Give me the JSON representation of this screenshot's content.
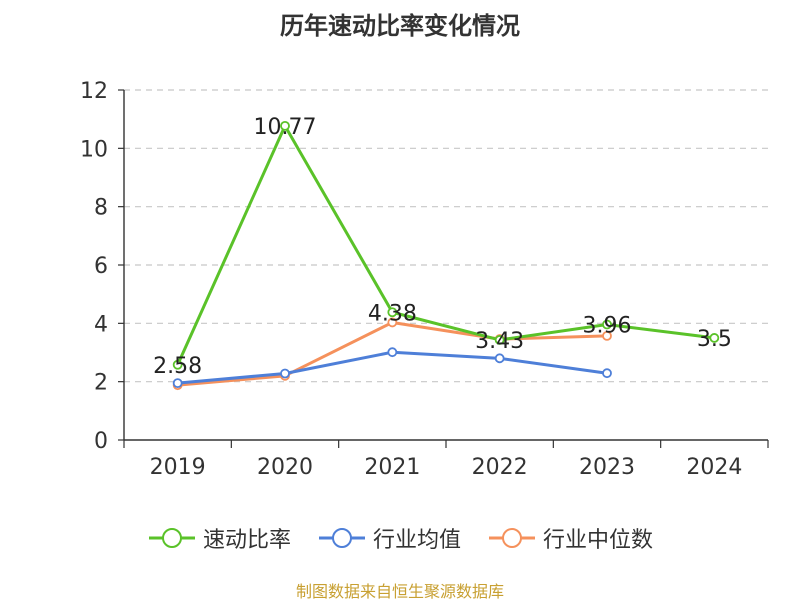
{
  "chart_data": {
    "type": "line",
    "title": "历年速动比率变化情况",
    "categories": [
      "2019",
      "2020",
      "2021",
      "2022",
      "2023",
      "2024"
    ],
    "ylim": [
      0,
      12
    ],
    "yticks": [
      0,
      2,
      4,
      6,
      8,
      10,
      12
    ],
    "grid": true,
    "legend_position": "bottom",
    "series": [
      {
        "name": "速动比率",
        "color": "#5ac229",
        "values": [
          2.58,
          10.77,
          4.38,
          3.43,
          3.96,
          3.5
        ],
        "labels": [
          "2.58",
          "10.77",
          "4.38",
          "3.43",
          "3.96",
          "3.5"
        ]
      },
      {
        "name": "行业均值",
        "color": "#4e7fd8",
        "values": [
          1.95,
          2.28,
          3.01,
          2.8,
          2.29,
          null
        ]
      },
      {
        "name": "行业中位数",
        "color": "#f5915c",
        "values": [
          1.88,
          2.2,
          4.03,
          3.46,
          3.57,
          null
        ]
      }
    ]
  },
  "source": "制图数据来自恒生聚源数据库"
}
